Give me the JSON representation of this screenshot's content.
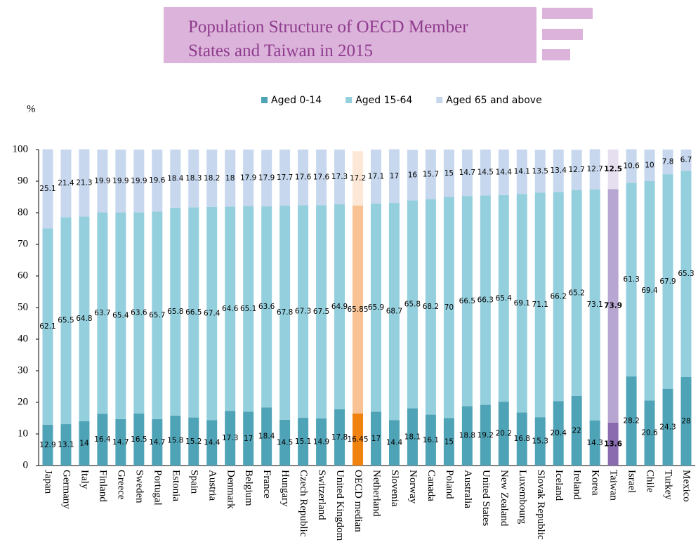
{
  "chart_data": {
    "type": "stacked_bar",
    "title_lines": [
      "Population Structure of OECD Member",
      "States and Taiwan in 2015"
    ],
    "y_label": "%",
    "categories": [
      "Japan",
      "Germany",
      "Italy",
      "Finland",
      "Greece",
      "Sweden",
      "Portugal",
      "Estonia",
      "Spain",
      "Austria",
      "Denmark",
      "Belgium",
      "France",
      "Hungary",
      "Czech Republic",
      "Switzerland",
      "United Kingdom",
      "OECD median",
      "Netherland",
      "Slovenia",
      "Norway",
      "Canada",
      "Poland",
      "Australia",
      "United States",
      "New Zealand",
      "Luxembourg",
      "Slovak Republic",
      "Iceland",
      "Ireland",
      "Korea",
      "Taiwan",
      "Israel",
      "Chile",
      "Turkey",
      "Mexico"
    ],
    "series": [
      {
        "name": "Aged 0-14",
        "color": "#4fa3b6",
        "values": [
          12.9,
          13.1,
          14,
          16.4,
          14.7,
          16.5,
          14.7,
          15.8,
          15.2,
          14.4,
          17.3,
          17,
          18.4,
          14.5,
          15.1,
          14.9,
          17.8,
          16.45,
          17,
          14.4,
          18.1,
          16.1,
          15,
          18.8,
          19.2,
          20.2,
          16.8,
          15.3,
          20.4,
          22,
          14.3,
          13.6,
          28.2,
          20.6,
          24.3,
          28
        ]
      },
      {
        "name": "Aged 15-64",
        "color": "#93cfdd",
        "values": [
          62.1,
          65.5,
          64.8,
          63.7,
          65.4,
          63.6,
          65.7,
          65.8,
          66.5,
          67.4,
          64.6,
          65.1,
          63.6,
          67.8,
          67.3,
          67.5,
          64.9,
          65.85,
          65.9,
          68.7,
          65.8,
          68.2,
          70,
          66.5,
          66.3,
          65.4,
          69.1,
          71.1,
          66.2,
          65.2,
          73.1,
          73.9,
          61.3,
          69.4,
          67.9,
          65.3
        ]
      },
      {
        "name": "Aged 65 and above",
        "color": "#c6d7ee",
        "values": [
          25.1,
          21.4,
          21.3,
          19.9,
          19.9,
          19.9,
          19.6,
          18.4,
          18.3,
          18.2,
          18,
          17.9,
          17.9,
          17.7,
          17.6,
          17.6,
          17.3,
          17.2,
          17.1,
          17,
          16,
          15.7,
          15,
          14.7,
          14.5,
          14.4,
          14.1,
          13.5,
          13.4,
          12.7,
          12.7,
          12.5,
          10.6,
          10,
          7.8,
          6.7
        ]
      }
    ],
    "highlights": [
      {
        "category": "OECD median",
        "colors": [
          "#f0820f",
          "#f9c294",
          "#fde7d6"
        ],
        "bold": false
      },
      {
        "category": "Taiwan",
        "colors": [
          "#8a6bb0",
          "#b7a6d2",
          "#e5dfef"
        ],
        "bold": true
      }
    ],
    "ylim": [
      0,
      100
    ],
    "yticks": [
      0,
      10,
      20,
      30,
      40,
      50,
      60,
      70,
      80,
      90,
      100
    ],
    "grid": false,
    "legend": "top"
  }
}
